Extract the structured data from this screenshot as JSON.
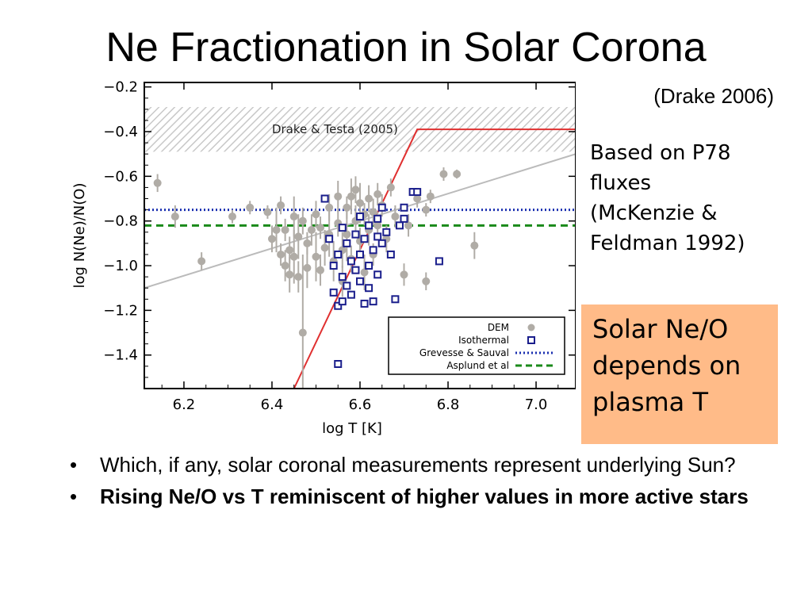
{
  "slide": {
    "title": "Ne Fractionation in Solar Corona",
    "citation": "(Drake 2006)",
    "note_lines": [
      "Based on P78",
      "fluxes",
      "(McKenzie &",
      "Feldman 1992)"
    ],
    "callout_lines": [
      "Solar Ne/O",
      "depends on",
      "plasma T"
    ],
    "bullets": [
      {
        "marker": "•",
        "text": "Which, if any, solar coronal measurements represent underlying Sun?"
      },
      {
        "marker": "•",
        "text": "Rising Ne/O vs T reminiscent of higher values in more active stars"
      }
    ],
    "callout_color": "#ffbb88"
  },
  "chart_data": {
    "type": "scatter",
    "xlabel": "log  T  [K]",
    "ylabel": "log  N(Ne)/N(O)",
    "xlim": [
      6.11,
      7.09
    ],
    "ylim": [
      -1.55,
      -0.18
    ],
    "x_ticks": [
      6.2,
      6.4,
      6.6,
      6.8,
      7.0
    ],
    "x_tick_labels": [
      "6.2",
      "6.4",
      "6.6",
      "6.8",
      "7.0"
    ],
    "y_ticks": [
      -0.2,
      -0.4,
      -0.6,
      -0.8,
      -1.0,
      -1.2,
      -1.4
    ],
    "y_tick_labels": [
      "−0.2",
      "−0.4",
      "−0.6",
      "−0.8",
      "−1.0",
      "−1.2",
      "−1.4"
    ],
    "grid": false,
    "legend_position": "bottom-right",
    "band": {
      "label": "Drake & Testa (2005)",
      "y_range": [
        -0.49,
        -0.29
      ]
    },
    "reference_lines": [
      {
        "name": "Grevesse & Sauval",
        "y": -0.75,
        "color": "#1a2fb0",
        "style": "dotted"
      },
      {
        "name": "Asplund et al",
        "y": -0.82,
        "color": "#1a8a1a",
        "style": "dashed"
      }
    ],
    "fits": [
      {
        "color": "#bbbbbb",
        "points": [
          [
            6.11,
            -1.1
          ],
          [
            7.09,
            -0.5
          ]
        ]
      },
      {
        "color": "#e03030",
        "points": [
          [
            6.45,
            -1.55
          ],
          [
            6.73,
            -0.39
          ],
          [
            7.09,
            -0.39
          ]
        ]
      }
    ],
    "series": [
      {
        "name": "DEM",
        "marker": "circle",
        "color": "#b0aca6",
        "points": [
          [
            6.14,
            -0.63,
            0.04
          ],
          [
            6.18,
            -0.78,
            0.05
          ],
          [
            6.24,
            -0.98,
            0.04
          ],
          [
            6.31,
            -0.78,
            0.03
          ],
          [
            6.35,
            -0.74,
            0.03
          ],
          [
            6.39,
            -0.76,
            0.03
          ],
          [
            6.4,
            -0.88,
            0.06
          ],
          [
            6.41,
            -0.84,
            0.1
          ],
          [
            6.42,
            -0.95,
            0.05
          ],
          [
            6.42,
            -0.73,
            0.04
          ],
          [
            6.43,
            -1.0,
            0.07
          ],
          [
            6.43,
            -0.84,
            0.05
          ],
          [
            6.44,
            -1.04,
            0.08
          ],
          [
            6.44,
            -0.93,
            0.06
          ],
          [
            6.45,
            -0.78,
            0.09
          ],
          [
            6.45,
            -0.96,
            0.12
          ],
          [
            6.46,
            -1.05,
            0.07
          ],
          [
            6.46,
            -0.87,
            0.1
          ],
          [
            6.47,
            -1.3,
            0.35
          ],
          [
            6.47,
            -0.8,
            0.06
          ],
          [
            6.48,
            -0.9,
            0.05
          ],
          [
            6.48,
            -1.01,
            0.09
          ],
          [
            6.49,
            -0.84,
            0.07
          ],
          [
            6.5,
            -0.96,
            0.11
          ],
          [
            6.5,
            -0.77,
            0.06
          ],
          [
            6.51,
            -0.83,
            0.05
          ],
          [
            6.51,
            -1.02,
            0.07
          ],
          [
            6.52,
            -0.92,
            0.08
          ],
          [
            6.53,
            -0.74,
            0.06
          ],
          [
            6.53,
            -0.86,
            0.1
          ],
          [
            6.54,
            -0.98,
            0.09
          ],
          [
            6.55,
            -0.69,
            0.07
          ],
          [
            6.55,
            -0.81,
            0.06
          ],
          [
            6.56,
            -0.93,
            0.08
          ],
          [
            6.56,
            -1.07,
            0.07
          ],
          [
            6.57,
            -0.74,
            0.05
          ],
          [
            6.57,
            -0.86,
            0.12
          ],
          [
            6.58,
            -0.69,
            0.08
          ],
          [
            6.58,
            -0.97,
            0.06
          ],
          [
            6.59,
            -0.8,
            0.07
          ],
          [
            6.59,
            -0.66,
            0.06
          ],
          [
            6.6,
            -0.72,
            0.09
          ],
          [
            6.6,
            -0.89,
            0.06
          ],
          [
            6.61,
            -1.03,
            0.08
          ],
          [
            6.61,
            -0.77,
            0.05
          ],
          [
            6.62,
            -0.7,
            0.06
          ],
          [
            6.62,
            -0.84,
            0.07
          ],
          [
            6.63,
            -0.95,
            0.05
          ],
          [
            6.63,
            -0.76,
            0.06
          ],
          [
            6.64,
            -0.68,
            0.05
          ],
          [
            6.64,
            -0.82,
            0.06
          ],
          [
            6.65,
            -0.73,
            0.05
          ],
          [
            6.66,
            -0.88,
            0.06
          ],
          [
            6.67,
            -0.65,
            0.04
          ],
          [
            6.68,
            -0.78,
            0.05
          ],
          [
            6.7,
            -1.04,
            0.05
          ],
          [
            6.71,
            -0.82,
            0.05
          ],
          [
            6.73,
            -0.7,
            0.04
          ],
          [
            6.75,
            -1.07,
            0.04
          ],
          [
            6.75,
            -0.75,
            0.03
          ],
          [
            6.76,
            -0.69,
            0.03
          ],
          [
            6.79,
            -0.59,
            0.03
          ],
          [
            6.82,
            -0.59,
            0.02
          ],
          [
            6.86,
            -0.91,
            0.06
          ]
        ]
      },
      {
        "name": "Isothermal",
        "marker": "square",
        "color": "#1a1e8c",
        "points": [
          [
            6.52,
            -0.7
          ],
          [
            6.53,
            -0.88
          ],
          [
            6.54,
            -1.0
          ],
          [
            6.54,
            -1.12
          ],
          [
            6.55,
            -0.95
          ],
          [
            6.55,
            -1.18
          ],
          [
            6.55,
            -1.44
          ],
          [
            6.56,
            -0.83
          ],
          [
            6.56,
            -1.05
          ],
          [
            6.56,
            -1.16
          ],
          [
            6.57,
            -0.9
          ],
          [
            6.57,
            -1.09
          ],
          [
            6.58,
            -0.98
          ],
          [
            6.58,
            -1.13
          ],
          [
            6.59,
            -0.86
          ],
          [
            6.59,
            -1.02
          ],
          [
            6.6,
            -0.78
          ],
          [
            6.6,
            -0.95
          ],
          [
            6.6,
            -1.07
          ],
          [
            6.61,
            -0.88
          ],
          [
            6.61,
            -1.17
          ],
          [
            6.62,
            -0.82
          ],
          [
            6.62,
            -1.0
          ],
          [
            6.62,
            -1.1
          ],
          [
            6.63,
            -0.93
          ],
          [
            6.63,
            -1.16
          ],
          [
            6.64,
            -0.79
          ],
          [
            6.64,
            -0.87
          ],
          [
            6.64,
            -1.04
          ],
          [
            6.65,
            -0.74
          ],
          [
            6.65,
            -0.9
          ],
          [
            6.66,
            -0.85
          ],
          [
            6.67,
            -0.95
          ],
          [
            6.68,
            -1.15
          ],
          [
            6.69,
            -0.82
          ],
          [
            6.7,
            -0.74
          ],
          [
            6.7,
            -0.79
          ],
          [
            6.72,
            -0.67
          ],
          [
            6.73,
            -0.67
          ],
          [
            6.78,
            -0.98
          ]
        ]
      }
    ]
  }
}
